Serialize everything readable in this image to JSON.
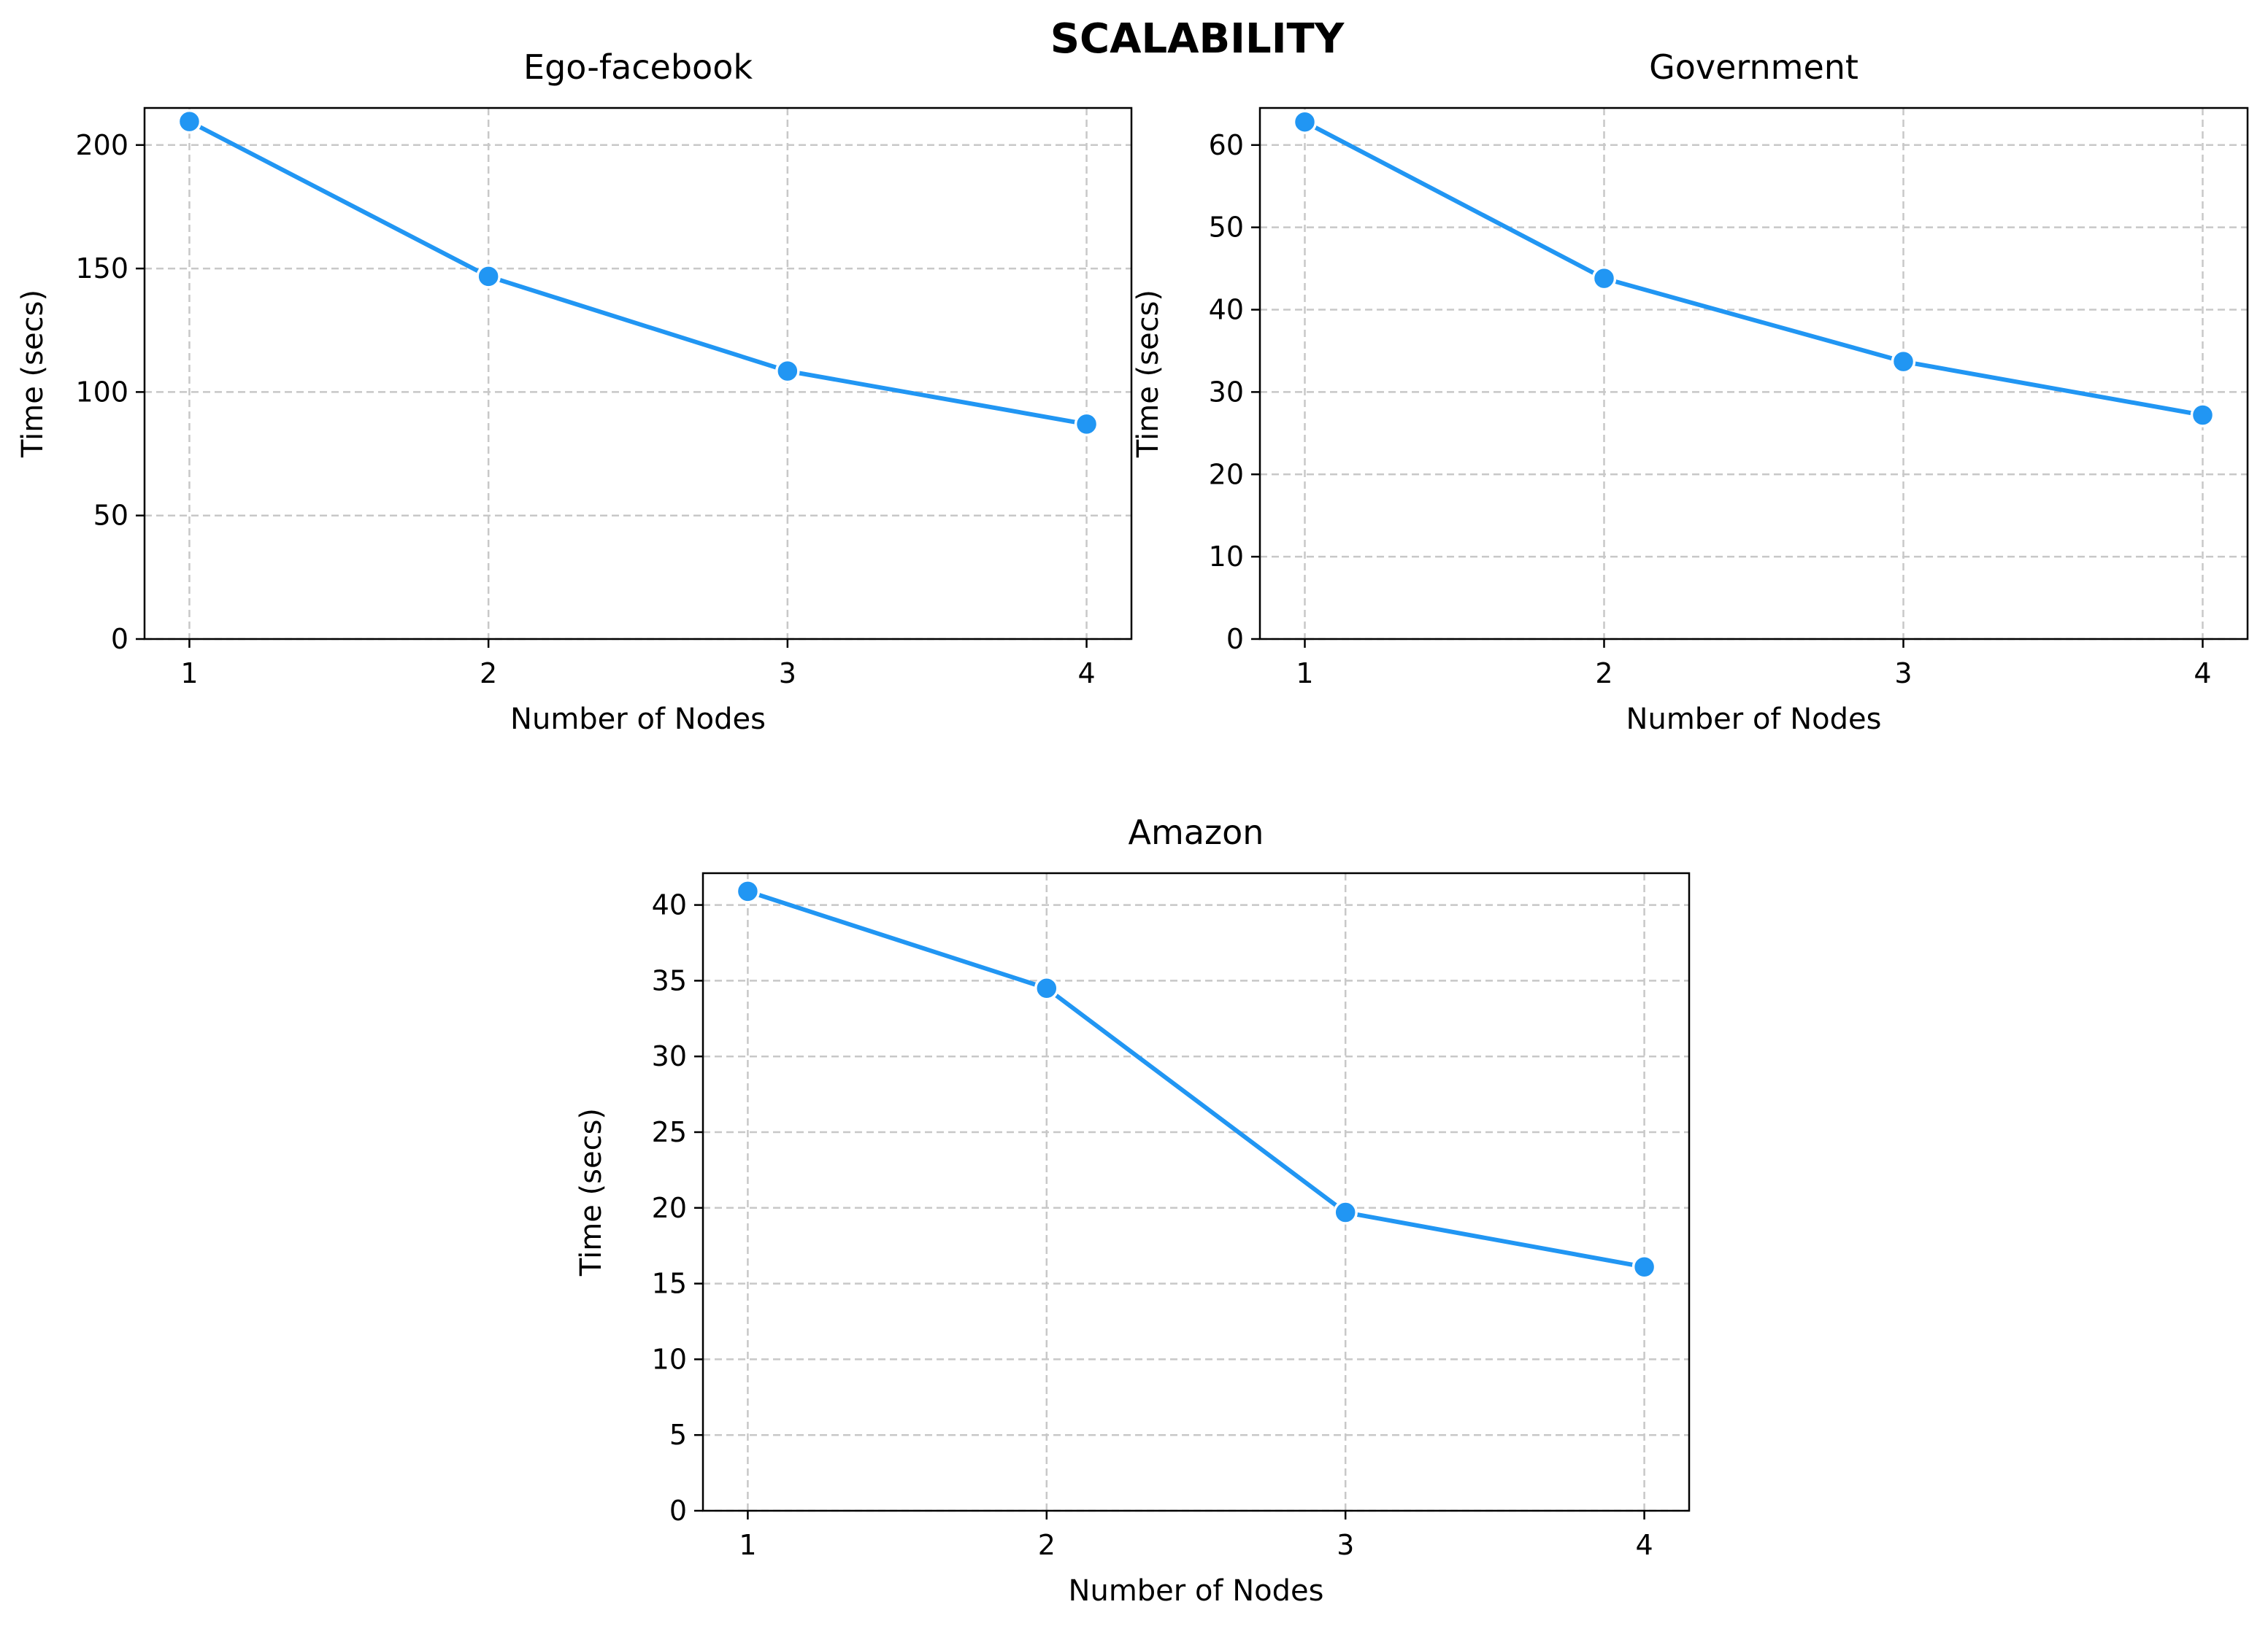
{
  "figure": {
    "title": "SCALABILITY"
  },
  "style": {
    "line_color": "#2196F3",
    "grid_color": "#c8c8c8"
  },
  "chart_data": [
    {
      "type": "line",
      "title": "Ego-facebook",
      "xlabel": "Number of Nodes",
      "ylabel": "Time (secs)",
      "x": [
        1,
        2,
        3,
        4
      ],
      "series": [
        {
          "values": [
            209.5,
            146.8,
            108.5,
            87.0
          ]
        }
      ],
      "xticks": [
        1,
        2,
        3,
        4
      ],
      "yticks": [
        0,
        50,
        100,
        150,
        200
      ],
      "xlim": [
        0.85,
        4.15
      ],
      "ylim": [
        0,
        215
      ],
      "grid": true,
      "grid_style": "dashed",
      "marker": "circle"
    },
    {
      "type": "line",
      "title": "Government",
      "xlabel": "Number of Nodes",
      "ylabel": "Time (secs)",
      "x": [
        1,
        2,
        3,
        4
      ],
      "series": [
        {
          "values": [
            62.8,
            43.8,
            33.7,
            27.2
          ]
        }
      ],
      "xticks": [
        1,
        2,
        3,
        4
      ],
      "yticks": [
        0,
        10,
        20,
        30,
        40,
        50,
        60
      ],
      "xlim": [
        0.85,
        4.15
      ],
      "ylim": [
        0,
        64.5
      ],
      "grid": true,
      "grid_style": "dashed",
      "marker": "circle"
    },
    {
      "type": "line",
      "title": "Amazon",
      "xlabel": "Number of Nodes",
      "ylabel": "Time (secs)",
      "x": [
        1,
        2,
        3,
        4
      ],
      "series": [
        {
          "values": [
            40.9,
            34.5,
            19.7,
            16.1
          ]
        }
      ],
      "xticks": [
        1,
        2,
        3,
        4
      ],
      "yticks": [
        0,
        5,
        10,
        15,
        20,
        25,
        30,
        35,
        40
      ],
      "xlim": [
        0.85,
        4.15
      ],
      "ylim": [
        0,
        42.1
      ],
      "grid": true,
      "grid_style": "dashed",
      "marker": "circle"
    }
  ]
}
